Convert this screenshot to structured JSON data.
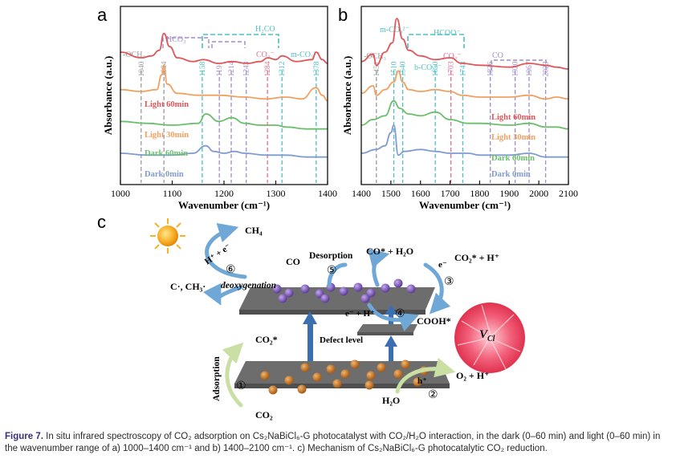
{
  "chart_data": [
    {
      "type": "line",
      "panel": "a",
      "xlabel": "Wavenumber (cm⁻¹)",
      "ylabel": "Absorbance (a.u.)",
      "xlim": [
        1000,
        1400
      ],
      "xticks": [
        "1000",
        "1100",
        "1200",
        "1300",
        "1400"
      ],
      "series": [
        {
          "name": "Light 60min",
          "color": "#e0565a",
          "x": [
            1000,
            1040,
            1060,
            1075,
            1084,
            1095,
            1110,
            1140,
            1160,
            1190,
            1215,
            1245,
            1270,
            1285,
            1300,
            1312,
            1340,
            1370,
            1378,
            1390,
            1400
          ],
          "values": [
            6.9,
            6.6,
            6.7,
            7.0,
            7.9,
            7.2,
            6.6,
            6.4,
            6.5,
            6.3,
            6.4,
            6.3,
            6.4,
            6.6,
            6.5,
            6.7,
            6.4,
            6.5,
            6.9,
            6.5,
            6.3
          ]
        },
        {
          "name": "Light 30min",
          "color": "#f0a060",
          "x": [
            1000,
            1040,
            1070,
            1080,
            1084,
            1090,
            1110,
            1150,
            1190,
            1240,
            1280,
            1320,
            1350,
            1378,
            1390,
            1400
          ],
          "values": [
            4.9,
            4.8,
            4.9,
            5.7,
            6.2,
            5.2,
            4.7,
            4.6,
            4.6,
            4.5,
            4.4,
            4.5,
            4.4,
            5.0,
            4.6,
            4.3
          ]
        },
        {
          "name": "Dark 60min",
          "color": "#6abf6a",
          "x": [
            1000,
            1050,
            1100,
            1150,
            1165,
            1190,
            1215,
            1240,
            1270,
            1300,
            1320,
            1360,
            1400
          ],
          "values": [
            3.2,
            3.1,
            3.0,
            3.1,
            3.6,
            3.2,
            3.4,
            3.1,
            3.0,
            3.0,
            2.9,
            2.8,
            2.8
          ]
        },
        {
          "name": "Dark 0min",
          "color": "#7f9bd0",
          "x": [
            1000,
            1050,
            1100,
            1140,
            1165,
            1180,
            1200,
            1220,
            1240,
            1280,
            1320,
            1360,
            1400
          ],
          "values": [
            1.5,
            1.4,
            1.4,
            1.5,
            1.9,
            1.6,
            1.5,
            1.6,
            1.5,
            1.4,
            1.4,
            1.3,
            1.3
          ]
        }
      ],
      "reference_lines": [
        {
          "x": 1040,
          "label": "1040",
          "color": "#9a9a9a"
        },
        {
          "x": 1084,
          "label": "1084",
          "color": "#9a9a9a"
        },
        {
          "x": 1158,
          "label": "1158",
          "color": "#4cc0c0"
        },
        {
          "x": 1191,
          "label": "1191",
          "color": "#a08cc8"
        },
        {
          "x": 1214,
          "label": "1214",
          "color": "#a08cc8"
        },
        {
          "x": 1243,
          "label": "1243",
          "color": "#a08cc8"
        },
        {
          "x": 1284,
          "label": "1284",
          "color": "#e07090"
        },
        {
          "x": 1312,
          "label": "1312",
          "color": "#4cc0c0"
        },
        {
          "x": 1378,
          "label": "1378",
          "color": "#4cc0c0"
        }
      ],
      "group_labels": [
        {
          "label": "-OCH₃",
          "color": "#9a9a9a"
        },
        {
          "label": "HCO₃⁻",
          "color": "#a08cc8"
        },
        {
          "label": "H₂CO",
          "color": "#4cc0c0"
        },
        {
          "label": "CO₂⁻",
          "color": "#e07090"
        },
        {
          "label": "m-CO₃²⁻",
          "color": "#4cc0c0"
        }
      ]
    },
    {
      "type": "line",
      "panel": "b",
      "xlabel": "Wavenumber (cm⁻¹)",
      "ylabel": "Absorbance (a.u.)",
      "xlim": [
        1400,
        2100
      ],
      "xticks": [
        "1400",
        "1500",
        "1600",
        "1700",
        "1800",
        "1900",
        "2000",
        "2100"
      ],
      "series": [
        {
          "name": "Light 60min",
          "color": "#e0565a",
          "x": [
            1400,
            1440,
            1451,
            1480,
            1505,
            1520,
            1540,
            1560,
            1600,
            1650,
            1700,
            1740,
            1800,
            1900,
            1967,
            2023,
            2060,
            2100
          ],
          "values": [
            6.4,
            6.8,
            6.2,
            6.9,
            7.4,
            8.7,
            7.6,
            7.0,
            6.7,
            6.5,
            6.6,
            6.3,
            6.2,
            6.1,
            6.3,
            6.2,
            6.1,
            6.0
          ]
        },
        {
          "name": "Light 30min",
          "color": "#f0a060",
          "x": [
            1400,
            1440,
            1451,
            1480,
            1510,
            1525,
            1540,
            1560,
            1600,
            1650,
            1700,
            1740,
            1800,
            1900,
            1967,
            2023,
            2060,
            2100
          ],
          "values": [
            4.7,
            5.1,
            4.6,
            4.9,
            5.3,
            5.9,
            5.3,
            4.9,
            4.8,
            4.9,
            4.8,
            4.6,
            4.5,
            4.5,
            4.6,
            4.4,
            4.5,
            4.4
          ]
        },
        {
          "name": "Dark 60min",
          "color": "#6abf6a",
          "x": [
            1400,
            1440,
            1480,
            1510,
            1530,
            1560,
            1600,
            1650,
            1700,
            1760,
            1800,
            1900,
            1967,
            2023,
            2060,
            2100
          ],
          "values": [
            3.0,
            3.3,
            3.5,
            4.3,
            3.9,
            3.6,
            3.5,
            3.7,
            3.3,
            3.1,
            3.1,
            3.0,
            3.1,
            2.9,
            2.9,
            2.8
          ]
        },
        {
          "name": "Dark 0min",
          "color": "#7f9bd0",
          "x": [
            1400,
            1450,
            1480,
            1500,
            1510,
            1525,
            1545,
            1600,
            1650,
            1700,
            1760,
            1800,
            1900,
            1967,
            2023,
            2100
          ],
          "values": [
            1.5,
            1.7,
            1.9,
            2.6,
            3.0,
            1.4,
            1.6,
            1.7,
            1.6,
            1.5,
            1.5,
            1.4,
            1.4,
            1.5,
            1.3,
            1.3
          ]
        }
      ],
      "reference_lines": [
        {
          "x": 1451,
          "label": "1451",
          "color": "#9a9a9a"
        },
        {
          "x": 1510,
          "label": "1510",
          "color": "#4cc0c0"
        },
        {
          "x": 1540,
          "label": "1540",
          "color": "#4cc0c0"
        },
        {
          "x": 1650,
          "label": "1650",
          "color": "#4cc0c0"
        },
        {
          "x": 1703,
          "label": "1703",
          "color": "#e07090"
        },
        {
          "x": 1743,
          "label": "1743",
          "color": "#4cc0c0"
        },
        {
          "x": 1836,
          "label": "1836",
          "color": "#a08cc8"
        },
        {
          "x": 1920,
          "label": "1920",
          "color": "#a08cc8"
        },
        {
          "x": 1967,
          "label": "1967",
          "color": "#a08cc8"
        },
        {
          "x": 2023,
          "label": "2023",
          "color": "#a08cc8"
        }
      ],
      "group_labels": [
        {
          "label": "-OCH₃",
          "color": "#9a9a9a"
        },
        {
          "label": "m-CO₃²⁻",
          "color": "#4cc0c0"
        },
        {
          "label": "HCOO⁻",
          "color": "#4cc0c0"
        },
        {
          "label": "b-CO₃²⁻",
          "color": "#4cc0c0"
        },
        {
          "label": "CO₂⁻",
          "color": "#e07090"
        },
        {
          "label": "CO",
          "color": "#a08cc8"
        }
      ]
    }
  ],
  "panel_letters": [
    "a",
    "b",
    "c"
  ],
  "mechanism": {
    "ch4": "CH₄",
    "h_plus_e": "H⁺ + e⁻",
    "step6": "⑥",
    "c_ch3": "C·, CH₃·",
    "deoxygenation": "deoxygenation",
    "co": "CO",
    "desorption": "Desorption",
    "step5": "⑤",
    "co_star_h2o": "CO* + H₂O",
    "e_minus": "e⁻",
    "step3": "③",
    "co2_star_h": "CO₂* + H⁺",
    "e_plus_h": "e⁻ + H⁺",
    "step4": "④",
    "cooh": "COOH*",
    "vcl": "V",
    "vcl_sub": "Cl",
    "defect_level": "Defect level",
    "co2_star": "CO₂*",
    "adsorption": "Adsorption",
    "step1": "①",
    "o2_h": "O₂ + H⁺",
    "h_plus": "h⁺",
    "step2": "②",
    "h2o": "H₂O",
    "co2": "CO₂"
  },
  "caption": {
    "label": "Figure 7.",
    "text": "In situ infrared spectroscopy of CO₂ adsorption on Cs₂NaBiCl₆-G photocatalyst with CO₂/H₂O interaction, in the dark (0–60 min) and light (0–60 min) in the wavenumber range of a) 1000–1400 cm⁻¹ and b) 1400–2100 cm⁻¹. c) Mechanism of Cs₂NaBiCl₆-G photocatalytic CO₂ reduction."
  }
}
